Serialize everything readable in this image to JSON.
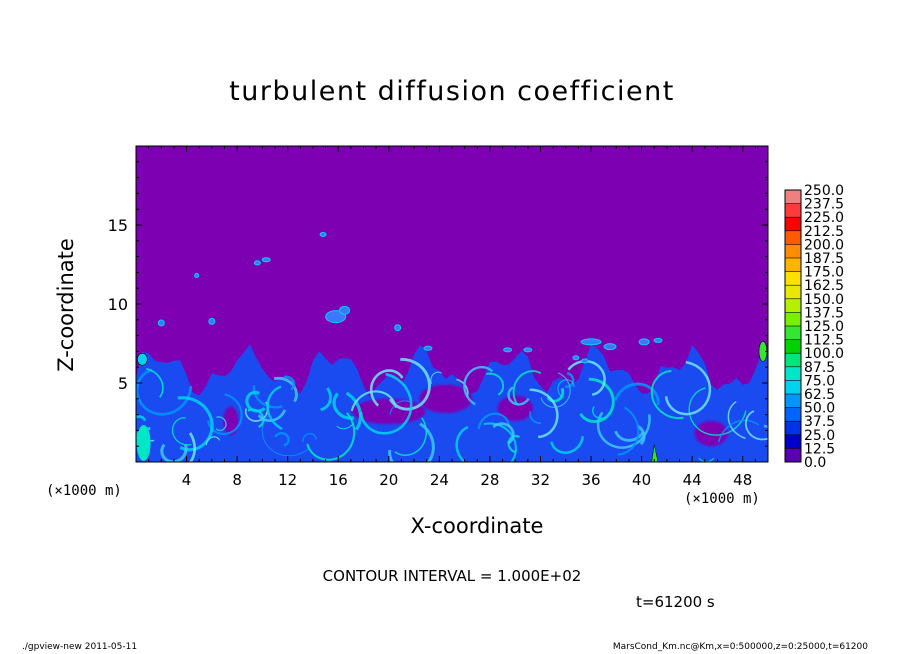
{
  "chart_data": {
    "type": "heatmap",
    "title": "turbulent diffusion coefficient",
    "xlabel": "X-coordinate",
    "ylabel": "Z-coordinate",
    "x_unit_left": "(×1000 m)",
    "x_unit_right": "(×1000 m)",
    "xlim": [
      0,
      50
    ],
    "ylim": [
      0,
      20
    ],
    "x_ticks": [
      4,
      8,
      12,
      16,
      20,
      24,
      28,
      32,
      36,
      40,
      44,
      48
    ],
    "y_ticks": [
      5,
      10,
      15
    ],
    "x_tick_labels": [
      "4",
      "8",
      "12",
      "16",
      "20",
      "24",
      "28",
      "32",
      "36",
      "40",
      "44",
      "48"
    ],
    "y_tick_labels": [
      "5",
      "10",
      "15"
    ],
    "colorbar": {
      "levels": [
        "250.0",
        "237.5",
        "225.0",
        "212.5",
        "200.0",
        "187.5",
        "175.0",
        "162.5",
        "150.0",
        "137.5",
        "125.0",
        "112.5",
        "100.0",
        "87.5",
        "75.0",
        "62.5",
        "50.0",
        "37.5",
        "25.0",
        "12.5",
        "0.0"
      ],
      "colors": [
        "#f08080",
        "#ff3a3a",
        "#ff0000",
        "#ff5a00",
        "#ff8c00",
        "#ffb400",
        "#ffe000",
        "#e8e800",
        "#b4f000",
        "#78f000",
        "#32e632",
        "#00d200",
        "#00e678",
        "#00e6c8",
        "#00d2f0",
        "#0096ff",
        "#0064ff",
        "#0032e6",
        "#0000c8",
        "#5a00b4"
      ]
    },
    "background_value": "0.0",
    "background_color": "#7d00b3",
    "turbulent_layer_top_approx": 6.5
  },
  "contour_interval": "CONTOUR INTERVAL = 1.000E+02",
  "time": "t=61200 s",
  "footer_left": "./gpview-new   2011-05-11",
  "footer_right": "MarsCond_Km.nc@Km,x=0:500000,z=0:25000,t=61200"
}
